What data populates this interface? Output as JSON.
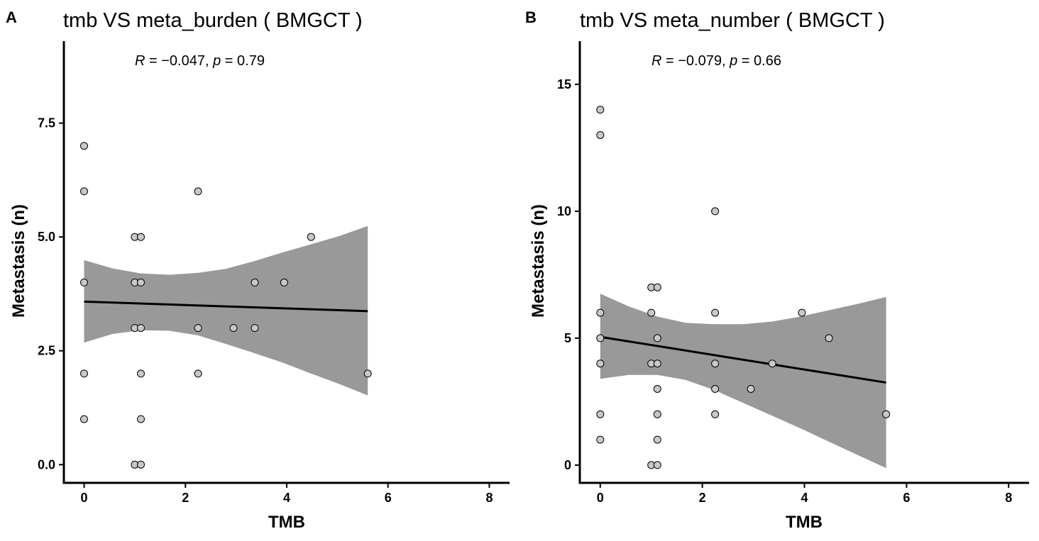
{
  "chart_data": [
    {
      "type": "scatter",
      "panel_label": "A",
      "title": "tmb  VS  meta_burden ( BMGCT )",
      "annotation": {
        "r_label": "R",
        "r_value": " = −0.047, ",
        "p_label": "p",
        "p_value": " = 0.79"
      },
      "xlabel": "TMB",
      "ylabel": "Metastasis (n)",
      "xlim": [
        -0.4,
        8.4
      ],
      "ylim": [
        -0.4,
        9.3
      ],
      "xticks": [
        0,
        2,
        4,
        6,
        8
      ],
      "xtick_labels": [
        "0",
        "2",
        "4",
        "6",
        "8"
      ],
      "yticks": [
        0,
        2.5,
        5,
        7.5
      ],
      "ytick_labels": [
        "0.0",
        "2.5",
        "5.0",
        "7.5"
      ],
      "points": [
        {
          "x": 0,
          "y": 7
        },
        {
          "x": 0,
          "y": 6
        },
        {
          "x": 0,
          "y": 4
        },
        {
          "x": 0,
          "y": 2
        },
        {
          "x": 0,
          "y": 1
        },
        {
          "x": 1.0,
          "y": 5
        },
        {
          "x": 1.12,
          "y": 5
        },
        {
          "x": 1.0,
          "y": 4
        },
        {
          "x": 1.12,
          "y": 4
        },
        {
          "x": 1.0,
          "y": 3
        },
        {
          "x": 1.12,
          "y": 3
        },
        {
          "x": 1.12,
          "y": 2
        },
        {
          "x": 1.12,
          "y": 1
        },
        {
          "x": 1.0,
          "y": 0
        },
        {
          "x": 1.12,
          "y": 0
        },
        {
          "x": 2.25,
          "y": 6
        },
        {
          "x": 2.25,
          "y": 3
        },
        {
          "x": 2.25,
          "y": 2
        },
        {
          "x": 2.95,
          "y": 3
        },
        {
          "x": 3.37,
          "y": 4
        },
        {
          "x": 3.37,
          "y": 3
        },
        {
          "x": 3.95,
          "y": 4
        },
        {
          "x": 4.48,
          "y": 5
        },
        {
          "x": 5.6,
          "y": 2
        }
      ],
      "fit": {
        "x0": 0,
        "y0": 3.58,
        "x1": 5.6,
        "y1": 3.37
      },
      "band": {
        "x": [
          0,
          0.56,
          1.12,
          1.68,
          2.24,
          2.8,
          3.36,
          3.92,
          4.48,
          5.04,
          5.6
        ],
        "lower": [
          2.68,
          2.87,
          2.95,
          2.94,
          2.84,
          2.65,
          2.45,
          2.24,
          2.0,
          1.77,
          1.52
        ],
        "upper": [
          4.49,
          4.31,
          4.2,
          4.17,
          4.21,
          4.3,
          4.47,
          4.66,
          4.84,
          5.02,
          5.24
        ]
      },
      "colors": {
        "point_fill": "#c8c8c8",
        "point_stroke": "#000000",
        "band": "#999999",
        "fit_line": "#000000"
      }
    },
    {
      "type": "scatter",
      "panel_label": "B",
      "title": "tmb  VS  meta_number ( BMGCT )",
      "annotation": {
        "r_label": "R",
        "r_value": " = −0.079, ",
        "p_label": "p",
        "p_value": " = 0.66"
      },
      "xlabel": "TMB",
      "ylabel": "Metastasis (n)",
      "xlim": [
        -0.4,
        8.4
      ],
      "ylim": [
        -0.7,
        16.7
      ],
      "xticks": [
        0,
        2,
        4,
        6,
        8
      ],
      "xtick_labels": [
        "0",
        "2",
        "4",
        "6",
        "8"
      ],
      "yticks": [
        0,
        5,
        10,
        15
      ],
      "ytick_labels": [
        "0",
        "5",
        "10",
        "15"
      ],
      "points": [
        {
          "x": 0,
          "y": 14
        },
        {
          "x": 0,
          "y": 13
        },
        {
          "x": 0,
          "y": 6
        },
        {
          "x": 0,
          "y": 5
        },
        {
          "x": 0,
          "y": 4
        },
        {
          "x": 0,
          "y": 2
        },
        {
          "x": 0,
          "y": 1
        },
        {
          "x": 1.0,
          "y": 7
        },
        {
          "x": 1.12,
          "y": 7
        },
        {
          "x": 1.0,
          "y": 6
        },
        {
          "x": 1.12,
          "y": 5
        },
        {
          "x": 1.0,
          "y": 4
        },
        {
          "x": 1.12,
          "y": 4
        },
        {
          "x": 1.12,
          "y": 3
        },
        {
          "x": 1.12,
          "y": 2
        },
        {
          "x": 1.12,
          "y": 1
        },
        {
          "x": 1.0,
          "y": 0
        },
        {
          "x": 1.12,
          "y": 0
        },
        {
          "x": 2.25,
          "y": 10
        },
        {
          "x": 2.25,
          "y": 6
        },
        {
          "x": 2.25,
          "y": 4
        },
        {
          "x": 2.25,
          "y": 3
        },
        {
          "x": 2.25,
          "y": 2
        },
        {
          "x": 2.95,
          "y": 3
        },
        {
          "x": 3.37,
          "y": 4
        },
        {
          "x": 3.95,
          "y": 6
        },
        {
          "x": 4.48,
          "y": 5
        },
        {
          "x": 5.6,
          "y": 2
        }
      ],
      "fit": {
        "x0": 0,
        "y0": 5.05,
        "x1": 5.6,
        "y1": 3.25
      },
      "band": {
        "x": [
          0,
          0.56,
          1.12,
          1.68,
          2.24,
          2.8,
          3.36,
          3.92,
          4.48,
          5.04,
          5.6
        ],
        "lower": [
          3.4,
          3.55,
          3.55,
          3.35,
          2.95,
          2.45,
          1.95,
          1.45,
          0.92,
          0.4,
          -0.12
        ],
        "upper": [
          6.75,
          6.25,
          5.85,
          5.6,
          5.55,
          5.55,
          5.65,
          5.85,
          6.1,
          6.35,
          6.62
        ]
      },
      "colors": {
        "point_fill": "#c8c8c8",
        "point_stroke": "#000000",
        "band": "#999999",
        "fit_line": "#000000"
      }
    }
  ]
}
